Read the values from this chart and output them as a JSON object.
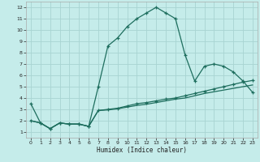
{
  "xlabel": "Humidex (Indice chaleur)",
  "bg_color": "#c5ecea",
  "grid_color": "#a8d4d2",
  "line_color": "#1e6e5e",
  "xlim": [
    -0.5,
    23.5
  ],
  "ylim": [
    0.5,
    12.5
  ],
  "xticks": [
    0,
    1,
    2,
    3,
    4,
    5,
    6,
    7,
    8,
    9,
    10,
    11,
    12,
    13,
    14,
    15,
    16,
    17,
    18,
    19,
    20,
    21,
    22,
    23
  ],
  "yticks": [
    1,
    2,
    3,
    4,
    5,
    6,
    7,
    8,
    9,
    10,
    11,
    12
  ],
  "line1_x": [
    0,
    1,
    2,
    3,
    4,
    5,
    6,
    7,
    8,
    9,
    10,
    11,
    12,
    13,
    14,
    15,
    16,
    17,
    18,
    19,
    20,
    21,
    22,
    23
  ],
  "line1_y": [
    3.5,
    1.8,
    1.3,
    1.8,
    1.7,
    1.7,
    1.5,
    5.0,
    8.6,
    9.3,
    10.3,
    11.0,
    11.5,
    12.0,
    11.5,
    11.0,
    7.8,
    5.5,
    6.8,
    7.0,
    6.8,
    6.3,
    5.5,
    4.5
  ],
  "line2_x": [
    0,
    1,
    2,
    3,
    4,
    5,
    6,
    7,
    8,
    9,
    10,
    11,
    12,
    13,
    14,
    15,
    16,
    17,
    18,
    19,
    20,
    21,
    22,
    23
  ],
  "line2_y": [
    2.0,
    1.8,
    1.3,
    1.8,
    1.7,
    1.7,
    1.5,
    2.9,
    3.0,
    3.1,
    3.3,
    3.5,
    3.6,
    3.75,
    3.9,
    4.0,
    4.2,
    4.4,
    4.6,
    4.8,
    5.0,
    5.2,
    5.4,
    5.55
  ],
  "line3_x": [
    0,
    1,
    2,
    3,
    4,
    5,
    6,
    7,
    8,
    9,
    10,
    11,
    12,
    13,
    14,
    15,
    16,
    17,
    18,
    19,
    20,
    21,
    22,
    23
  ],
  "line3_y": [
    2.0,
    1.8,
    1.3,
    1.8,
    1.7,
    1.7,
    1.5,
    2.9,
    2.95,
    3.05,
    3.2,
    3.35,
    3.45,
    3.6,
    3.75,
    3.9,
    4.0,
    4.2,
    4.4,
    4.55,
    4.7,
    4.85,
    5.0,
    5.15
  ]
}
